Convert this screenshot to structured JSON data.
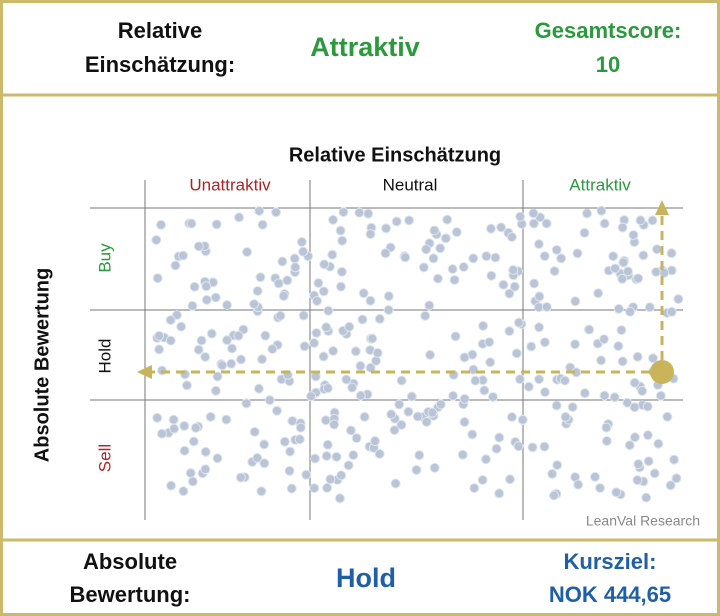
{
  "header": {
    "label_lines": [
      "Relative",
      "Einschätzung:"
    ],
    "value": "Attraktiv",
    "score_lines": [
      "Gesamtscore:",
      "10"
    ]
  },
  "matrix": {
    "title": "Relative Einschätzung",
    "columns": [
      "Unattraktiv",
      "Neutral",
      "Attraktiv"
    ],
    "y_title": "Absolute Bewertung",
    "rows": [
      "Buy",
      "Hold",
      "Sell"
    ],
    "credit": "LeanVal Research"
  },
  "footer": {
    "label_lines": [
      "Absolute",
      "Bewertung:"
    ],
    "value": "Hold",
    "target_lines": [
      "Kursziel:",
      "NOK 444,65"
    ]
  }
}
